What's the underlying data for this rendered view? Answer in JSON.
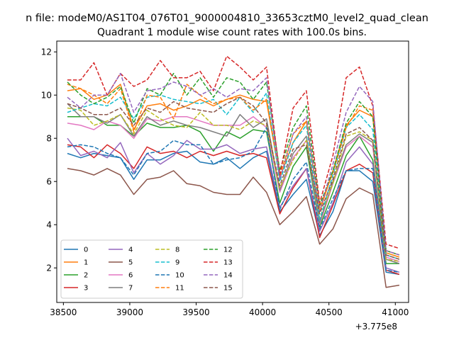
{
  "chart_data": {
    "type": "line",
    "suptitle": "n file: modeM0/AS1T04_076T01_9000004810_33653cztM0_level2_quad_clean",
    "title": "Quadrant 1 module wise count rates with 100.0s bins.",
    "xlabel": "",
    "ylabel": "",
    "offset_label": "+3.775e8",
    "xlim": [
      38450,
      41100
    ],
    "ylim": [
      0.4,
      12.5
    ],
    "xticks": [
      38500,
      39000,
      39500,
      40000,
      40500,
      41000
    ],
    "yticks": [
      2,
      4,
      6,
      8,
      10,
      12
    ],
    "legend_position": "lower-left",
    "legend_columns": 4,
    "x": [
      38530,
      38630,
      38730,
      38830,
      38930,
      39030,
      39130,
      39230,
      39330,
      39430,
      39530,
      39630,
      39730,
      39830,
      39930,
      40030,
      40130,
      40230,
      40330,
      40430,
      40530,
      40630,
      40730,
      40830,
      40930,
      41030
    ],
    "series": [
      {
        "name": "0",
        "color": "#1f77b4",
        "dash": "solid",
        "values": [
          7.3,
          7.1,
          7.3,
          7.2,
          7.1,
          6.1,
          7.0,
          7.0,
          7.3,
          7.4,
          6.9,
          6.8,
          7.1,
          6.6,
          7.1,
          7.4,
          4.6,
          5.4,
          6.1,
          3.5,
          4.6,
          6.5,
          6.5,
          6.0,
          1.8,
          1.7
        ]
      },
      {
        "name": "1",
        "color": "#ff7f0e",
        "dash": "solid",
        "values": [
          10.2,
          10.3,
          9.8,
          10.0,
          10.5,
          8.4,
          9.5,
          9.6,
          9.3,
          9.5,
          9.8,
          9.5,
          9.8,
          10.0,
          9.8,
          9.7,
          6.2,
          7.8,
          8.8,
          4.6,
          6.5,
          8.6,
          9.3,
          9.0,
          2.7,
          2.5
        ]
      },
      {
        "name": "2",
        "color": "#2ca02c",
        "dash": "solid",
        "values": [
          9.0,
          9.0,
          9.0,
          8.6,
          8.6,
          8.1,
          8.7,
          8.5,
          8.5,
          8.6,
          8.3,
          7.4,
          8.3,
          8.0,
          8.4,
          8.3,
          5.0,
          6.7,
          7.6,
          3.9,
          5.5,
          7.2,
          8.1,
          7.0,
          2.2,
          2.2
        ]
      },
      {
        "name": "3",
        "color": "#d62728",
        "dash": "solid",
        "values": [
          7.7,
          7.6,
          7.1,
          7.7,
          7.3,
          6.6,
          7.6,
          7.3,
          7.4,
          7.1,
          7.4,
          7.2,
          7.4,
          7.2,
          7.3,
          7.1,
          4.5,
          5.7,
          6.6,
          3.4,
          4.9,
          6.5,
          6.8,
          6.4,
          1.9,
          1.7
        ]
      },
      {
        "name": "4",
        "color": "#9467bd",
        "dash": "solid",
        "values": [
          8.0,
          7.2,
          7.4,
          7.1,
          7.8,
          6.4,
          7.3,
          6.8,
          7.2,
          7.9,
          7.5,
          7.5,
          7.7,
          7.3,
          7.5,
          7.6,
          4.8,
          5.8,
          6.6,
          3.7,
          5.0,
          6.9,
          7.6,
          6.8,
          2.0,
          1.8
        ]
      },
      {
        "name": "5",
        "color": "#8c564b",
        "dash": "solid",
        "values": [
          6.6,
          6.5,
          6.3,
          6.6,
          6.3,
          5.4,
          6.1,
          6.2,
          6.5,
          5.9,
          5.8,
          5.5,
          5.4,
          5.4,
          6.2,
          5.5,
          4.0,
          4.6,
          5.3,
          3.1,
          3.8,
          5.2,
          5.7,
          5.4,
          1.1,
          1.2
        ]
      },
      {
        "name": "6",
        "color": "#e377c2",
        "dash": "solid",
        "values": [
          8.7,
          8.6,
          8.4,
          8.8,
          8.6,
          8.0,
          8.9,
          8.8,
          9.0,
          9.0,
          8.8,
          8.6,
          8.6,
          8.6,
          9.0,
          8.5,
          5.5,
          7.1,
          7.9,
          4.0,
          5.9,
          7.6,
          8.1,
          7.6,
          2.5,
          2.3
        ]
      },
      {
        "name": "7",
        "color": "#7f7f7f",
        "dash": "solid",
        "values": [
          9.6,
          9.0,
          9.0,
          8.7,
          9.1,
          8.1,
          9.0,
          8.6,
          8.8,
          8.6,
          8.5,
          8.3,
          8.1,
          9.1,
          8.5,
          8.9,
          5.6,
          7.3,
          8.1,
          4.1,
          6.0,
          7.7,
          8.2,
          7.8,
          2.4,
          2.2
        ]
      },
      {
        "name": "8",
        "color": "#bcbd22",
        "dash": "dashed",
        "values": [
          9.4,
          9.3,
          8.6,
          8.8,
          9.1,
          8.2,
          9.3,
          8.9,
          8.6,
          8.5,
          9.2,
          8.6,
          8.6,
          8.4,
          8.8,
          8.6,
          5.7,
          7.0,
          7.9,
          4.3,
          5.9,
          8.1,
          8.3,
          7.9,
          2.4,
          2.3
        ]
      },
      {
        "name": "9",
        "color": "#17becf",
        "dash": "dashed",
        "values": [
          9.2,
          9.4,
          9.6,
          9.5,
          9.9,
          8.9,
          9.9,
          10.0,
          9.8,
          9.7,
          9.6,
          9.8,
          9.1,
          9.9,
          9.2,
          10.1,
          6.0,
          7.8,
          8.6,
          4.2,
          6.3,
          8.5,
          9.1,
          8.4,
          2.6,
          2.4
        ]
      },
      {
        "name": "10",
        "color": "#1f77b4",
        "dash": "dashed",
        "values": [
          7.6,
          7.7,
          7.6,
          7.3,
          7.1,
          6.3,
          7.3,
          7.4,
          7.9,
          7.7,
          7.7,
          6.8,
          7.0,
          7.1,
          7.4,
          8.5,
          4.7,
          6.1,
          6.9,
          3.8,
          5.2,
          6.5,
          6.6,
          6.6,
          1.9,
          1.8
        ]
      },
      {
        "name": "11",
        "color": "#ff7f0e",
        "dash": "dashed",
        "values": [
          10.5,
          10.3,
          10.0,
          9.6,
          10.3,
          8.3,
          10.0,
          9.9,
          8.9,
          10.5,
          10.0,
          9.6,
          9.8,
          9.9,
          9.3,
          9.8,
          6.3,
          8.2,
          8.8,
          4.8,
          6.4,
          8.5,
          9.5,
          9.3,
          2.8,
          2.6
        ]
      },
      {
        "name": "12",
        "color": "#2ca02c",
        "dash": "dashed",
        "values": [
          10.6,
          10.0,
          9.6,
          9.9,
          10.4,
          8.7,
          10.3,
          10.0,
          11.0,
          10.0,
          10.8,
          9.9,
          10.8,
          10.6,
          9.8,
          10.6,
          6.5,
          8.5,
          9.5,
          4.9,
          6.5,
          8.7,
          9.7,
          9.0,
          2.8,
          2.6
        ]
      },
      {
        "name": "13",
        "color": "#d62728",
        "dash": "dashed",
        "values": [
          10.7,
          10.7,
          11.5,
          10.0,
          11.0,
          10.4,
          10.7,
          11.6,
          10.8,
          10.8,
          11.1,
          10.2,
          11.8,
          11.3,
          10.7,
          11.3,
          6.3,
          9.4,
          10.2,
          5.0,
          7.2,
          10.8,
          11.3,
          9.5,
          3.1,
          2.9
        ]
      },
      {
        "name": "14",
        "color": "#9467bd",
        "dash": "dashed",
        "values": [
          9.9,
          9.4,
          10.0,
          10.0,
          11.0,
          9.2,
          10.2,
          10.3,
          10.6,
          10.4,
          10.0,
          10.3,
          9.9,
          10.3,
          10.2,
          10.8,
          6.1,
          8.2,
          9.0,
          4.6,
          6.8,
          9.2,
          10.4,
          9.7,
          2.8,
          2.6
        ]
      },
      {
        "name": "15",
        "color": "#8c564b",
        "dash": "dashed",
        "values": [
          9.6,
          9.4,
          9.1,
          9.1,
          9.4,
          8.6,
          9.4,
          9.2,
          9.7,
          9.4,
          9.3,
          9.2,
          9.6,
          9.9,
          9.5,
          8.7,
          5.8,
          7.5,
          7.7,
          4.5,
          6.1,
          8.2,
          8.5,
          7.9,
          2.6,
          2.4
        ]
      }
    ]
  }
}
